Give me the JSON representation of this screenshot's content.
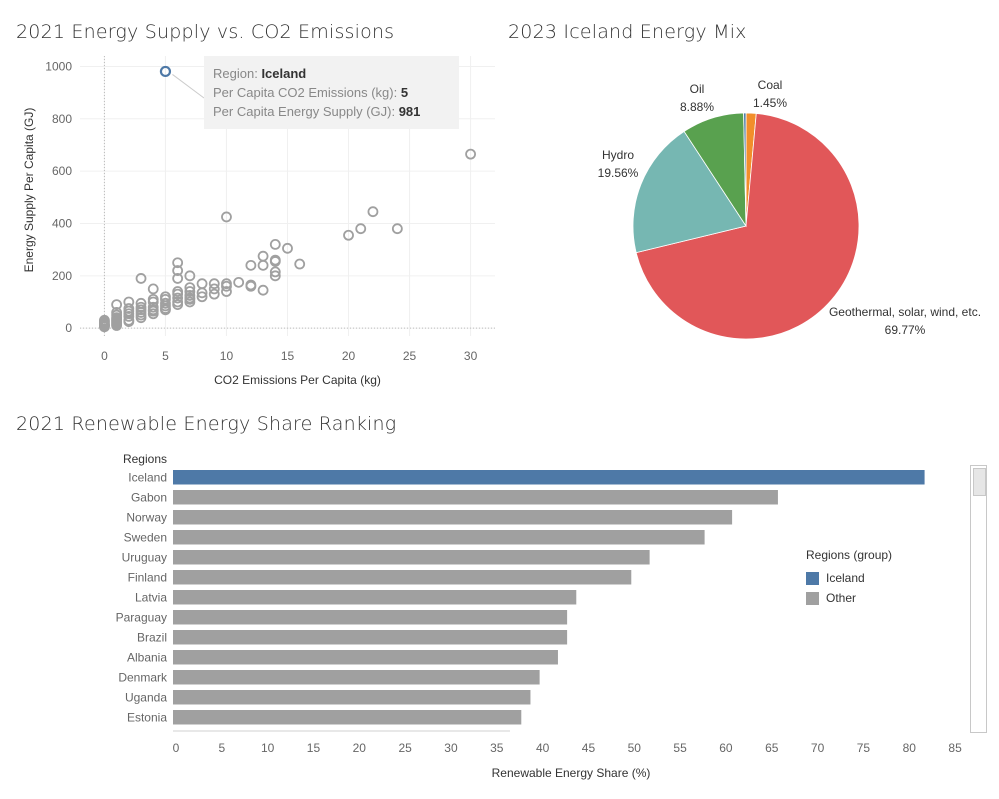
{
  "scatter_title": "2021 Energy Supply vs. CO2 Emissions",
  "pie_title": "2023 Iceland Energy Mix",
  "bar_title": "2021 Renewable Energy Share Ranking",
  "tooltip": {
    "region_label": "Region:",
    "region_value": "Iceland",
    "co2_label": "Per Capita CO2 Emissions (kg):",
    "co2_value": "5",
    "energy_label": "Per Capita Energy Supply (GJ):",
    "energy_value": "981"
  },
  "legend": {
    "title": "Regions (group)",
    "items": [
      {
        "label": "Iceland",
        "color": "#4e79a7"
      },
      {
        "label": "Other",
        "color": "#a0a0a0"
      }
    ]
  },
  "colors": {
    "iceland": "#4e79a7",
    "other": "#a0a0a0",
    "scatter_point": "#a0a0a0"
  },
  "chart_data": [
    {
      "type": "scatter",
      "title": "2021 Energy Supply vs. CO2 Emissions",
      "xlabel": "CO2 Emissions Per Capita (kg)",
      "ylabel": "Energy Supply Per Capita (GJ)",
      "xlim": [
        -2,
        32
      ],
      "ylim": [
        -30,
        1040
      ],
      "xticks": [
        0,
        5,
        10,
        15,
        20,
        25,
        30
      ],
      "yticks": [
        0,
        200,
        400,
        600,
        800,
        1000
      ],
      "highlight": {
        "x": 5,
        "y": 981,
        "name": "Iceland"
      },
      "points": [
        [
          0,
          5
        ],
        [
          0,
          10
        ],
        [
          0,
          15
        ],
        [
          0,
          20
        ],
        [
          0,
          25
        ],
        [
          0,
          30
        ],
        [
          0,
          8
        ],
        [
          0,
          12
        ],
        [
          1,
          10
        ],
        [
          1,
          20
        ],
        [
          1,
          30
        ],
        [
          1,
          40
        ],
        [
          1,
          50
        ],
        [
          1,
          60
        ],
        [
          1,
          90
        ],
        [
          1,
          15
        ],
        [
          1,
          25
        ],
        [
          1,
          35
        ],
        [
          2,
          30
        ],
        [
          2,
          45
        ],
        [
          2,
          55
        ],
        [
          2,
          65
        ],
        [
          2,
          75
        ],
        [
          2,
          100
        ],
        [
          2,
          25
        ],
        [
          3,
          40
        ],
        [
          3,
          50
        ],
        [
          3,
          60
        ],
        [
          3,
          70
        ],
        [
          3,
          80
        ],
        [
          3,
          95
        ],
        [
          3,
          190
        ],
        [
          4,
          55
        ],
        [
          4,
          70
        ],
        [
          4,
          80
        ],
        [
          4,
          100
        ],
        [
          4,
          110
        ],
        [
          4,
          150
        ],
        [
          4,
          65
        ],
        [
          5,
          70
        ],
        [
          5,
          85
        ],
        [
          5,
          95
        ],
        [
          5,
          110
        ],
        [
          5,
          120
        ],
        [
          5,
          75
        ],
        [
          6,
          90
        ],
        [
          6,
          100
        ],
        [
          6,
          115
        ],
        [
          6,
          130
        ],
        [
          6,
          140
        ],
        [
          6,
          190
        ],
        [
          6,
          220
        ],
        [
          6,
          250
        ],
        [
          7,
          100
        ],
        [
          7,
          115
        ],
        [
          7,
          125
        ],
        [
          7,
          140
        ],
        [
          7,
          155
        ],
        [
          7,
          200
        ],
        [
          7,
          110
        ],
        [
          8,
          120
        ],
        [
          8,
          135
        ],
        [
          8,
          170
        ],
        [
          9,
          130
        ],
        [
          9,
          150
        ],
        [
          9,
          170
        ],
        [
          10,
          140
        ],
        [
          10,
          160
        ],
        [
          10,
          170
        ],
        [
          10,
          425
        ],
        [
          11,
          175
        ],
        [
          12,
          160
        ],
        [
          12,
          240
        ],
        [
          12,
          165
        ],
        [
          13,
          145
        ],
        [
          13,
          240
        ],
        [
          13,
          275
        ],
        [
          14,
          200
        ],
        [
          14,
          215
        ],
        [
          14,
          255
        ],
        [
          14,
          260
        ],
        [
          14,
          320
        ],
        [
          15,
          305
        ],
        [
          16,
          245
        ],
        [
          20,
          355
        ],
        [
          21,
          380
        ],
        [
          22,
          445
        ],
        [
          24,
          380
        ],
        [
          30,
          665
        ]
      ]
    },
    {
      "type": "pie",
      "title": "2023 Iceland Energy Mix",
      "slices": [
        {
          "label": "Coal",
          "value": 1.45,
          "display": "1.45%",
          "color": "#f28e2b"
        },
        {
          "label": "Geothermal, solar, wind, etc.",
          "value": 69.77,
          "display": "69.77%",
          "color": "#e15759"
        },
        {
          "label": "Hydro",
          "value": 19.56,
          "display": "19.56%",
          "color": "#76b7b2"
        },
        {
          "label": "Oil",
          "value": 8.88,
          "display": "8.88%",
          "color": "#59a14f"
        },
        {
          "label": "",
          "value": 0.34,
          "display": "",
          "color": "#4e79a7"
        }
      ]
    },
    {
      "type": "bar",
      "orientation": "horizontal",
      "title": "2021 Renewable Energy Share Ranking",
      "ylabel": "Regions",
      "xlabel": "Renewable Energy Share (%)",
      "xlim": [
        0,
        85
      ],
      "xticks": [
        0,
        5,
        10,
        15,
        20,
        25,
        30,
        35,
        40,
        45,
        50,
        55,
        60,
        65,
        70,
        75,
        80,
        85
      ],
      "categories": [
        "Iceland",
        "Gabon",
        "Norway",
        "Sweden",
        "Uruguay",
        "Finland",
        "Latvia",
        "Paraguay",
        "Brazil",
        "Albania",
        "Denmark",
        "Uganda",
        "Estonia"
      ],
      "values": [
        82,
        66,
        61,
        58,
        52,
        50,
        44,
        43,
        43,
        42,
        40,
        39,
        38
      ],
      "groups": [
        "Iceland",
        "Other",
        "Other",
        "Other",
        "Other",
        "Other",
        "Other",
        "Other",
        "Other",
        "Other",
        "Other",
        "Other",
        "Other"
      ]
    }
  ]
}
